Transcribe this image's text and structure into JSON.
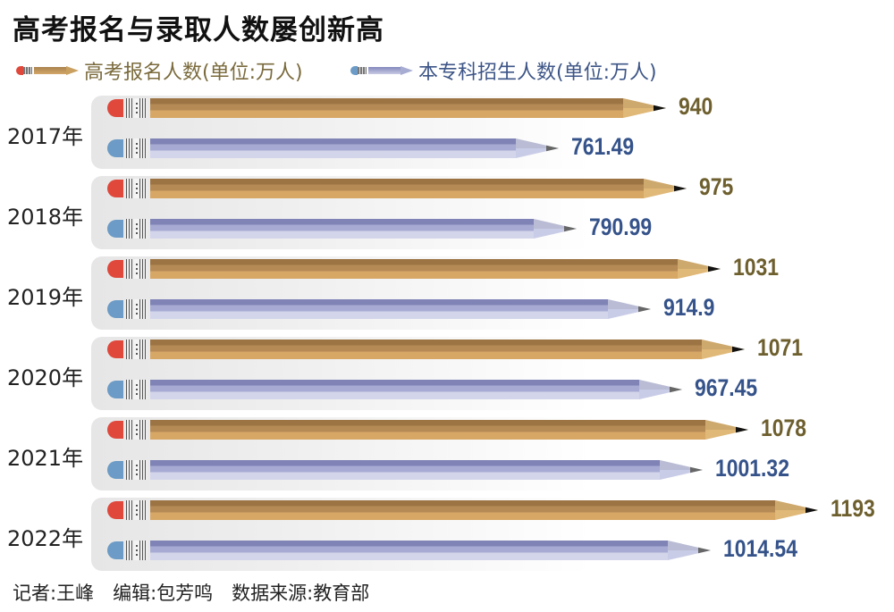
{
  "title": "高考报名与录取人数屡创新高",
  "legend": [
    {
      "label": "高考报名人数(单位:万人)",
      "color": "#7a6a3c",
      "icon": "orange-pencil-icon"
    },
    {
      "label": "本专科招生人数(单位:万人)",
      "color": "#3d5587",
      "icon": "blue-pencil-icon"
    }
  ],
  "footer": "记者:王峰　编辑:包芳鸣　数据来源:教育部",
  "colors": {
    "orange_value": "#6e5f2e",
    "blue_value": "#35538a",
    "orange_eraser": "#e0483c",
    "blue_eraser": "#6b9bc6"
  },
  "chart_data": {
    "type": "bar",
    "orientation": "horizontal",
    "title": "高考报名与录取人数屡创新高",
    "categories": [
      "2017年",
      "2018年",
      "2019年",
      "2020年",
      "2021年",
      "2022年"
    ],
    "series": [
      {
        "name": "高考报名人数(单位:万人)",
        "values": [
          940,
          975,
          1031,
          1071,
          1078,
          1193
        ]
      },
      {
        "name": "本专科招生人数(单位:万人)",
        "values": [
          761.49,
          790.99,
          914.9,
          967.45,
          1001.32,
          1014.54
        ]
      }
    ],
    "value_labels": {
      "s0": [
        "940",
        "975",
        "1031",
        "1071",
        "1078",
        "1193"
      ],
      "s1": [
        "761.49",
        "790.99",
        "914.9",
        "967.45",
        "1001.32",
        "1014.54"
      ]
    },
    "xlabel": "",
    "ylabel": "",
    "grid": false,
    "legend_position": "top",
    "source": "教育部"
  }
}
